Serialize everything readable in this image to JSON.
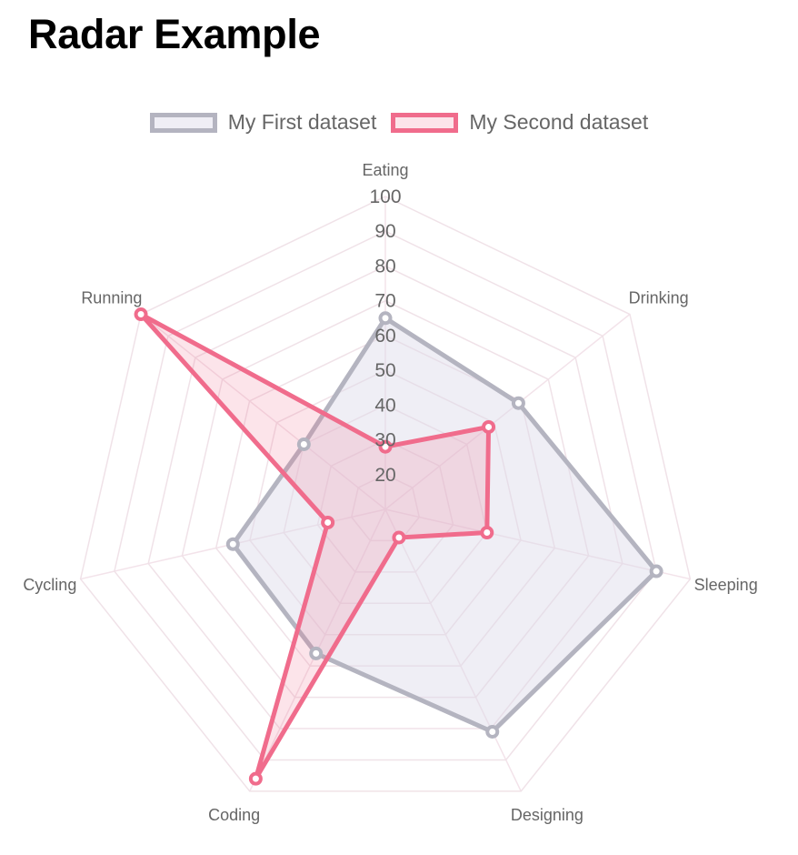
{
  "page": {
    "title": "Radar Example"
  },
  "chart_data": {
    "type": "radar",
    "labels": [
      "Eating",
      "Drinking",
      "Sleeping",
      "Designing",
      "Coding",
      "Cycling",
      "Running"
    ],
    "ticks": [
      20,
      30,
      40,
      50,
      60,
      70,
      80,
      90,
      100
    ],
    "r_range": [
      10,
      100
    ],
    "grid": true,
    "legend_position": "top",
    "series": [
      {
        "name": "My First dataset",
        "values": [
          65,
          59,
          90,
          81,
          56,
          55,
          40
        ],
        "border_color": "#b4b4c0",
        "fill_color": "rgba(220,218,232,0.45)",
        "point_color": "#b4b4c0"
      },
      {
        "name": "My Second dataset",
        "values": [
          28,
          48,
          40,
          19,
          96,
          27,
          100
        ],
        "border_color": "#f06c8c",
        "fill_color": "rgba(240,108,140,0.18)",
        "point_color": "#f06c8c"
      }
    ]
  }
}
